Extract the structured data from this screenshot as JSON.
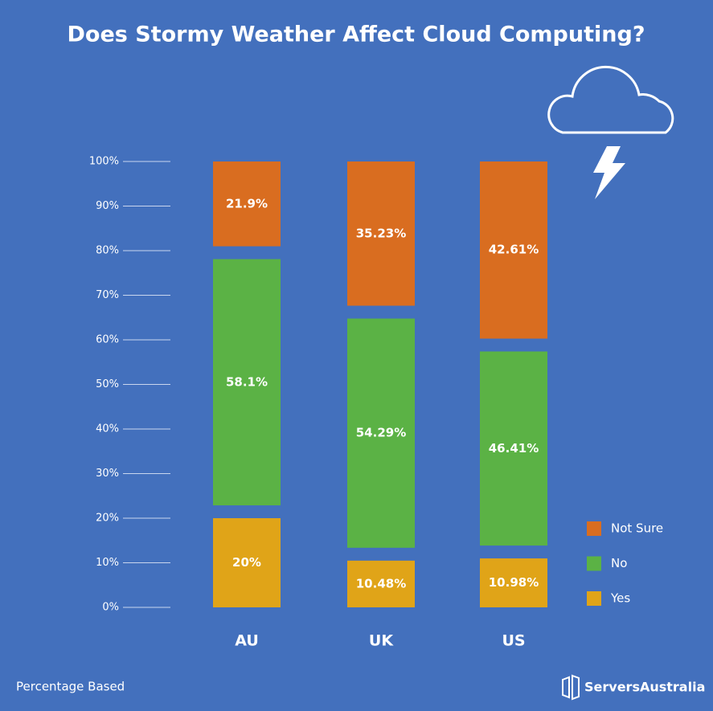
{
  "chart_data": {
    "type": "stacked_bar",
    "title": "Does Stormy Weather Affect Cloud Computing?",
    "categories": [
      "AU",
      "UK",
      "US"
    ],
    "series": [
      {
        "name": "Yes",
        "color": "#e0a418",
        "values": [
          20,
          10.48,
          10.98
        ],
        "value_labels": [
          "20%",
          "10.48%",
          "10.98%"
        ]
      },
      {
        "name": "No",
        "color": "#5bb245",
        "values": [
          58.1,
          54.29,
          46.41
        ],
        "value_labels": [
          "58.1%",
          "54.29%",
          "46.41%"
        ]
      },
      {
        "name": "Not Sure",
        "color": "#d96d20",
        "values": [
          21.9,
          35.23,
          42.61
        ],
        "value_labels": [
          "21.9%",
          "35.23%",
          "42.61%"
        ]
      }
    ],
    "ylim": [
      0,
      100
    ],
    "yticks": [
      {
        "value": 0,
        "label": "0%"
      },
      {
        "value": 10,
        "label": "10%"
      },
      {
        "value": 20,
        "label": "20%"
      },
      {
        "value": 30,
        "label": "30%"
      },
      {
        "value": 40,
        "label": "40%"
      },
      {
        "value": 50,
        "label": "50%"
      },
      {
        "value": 60,
        "label": "60%"
      },
      {
        "value": 70,
        "label": "70%"
      },
      {
        "value": 80,
        "label": "80%"
      },
      {
        "value": 90,
        "label": "90%"
      },
      {
        "value": 100,
        "label": "100%"
      }
    ],
    "note": "Percentage Based",
    "brand": "ServersAustralia"
  }
}
